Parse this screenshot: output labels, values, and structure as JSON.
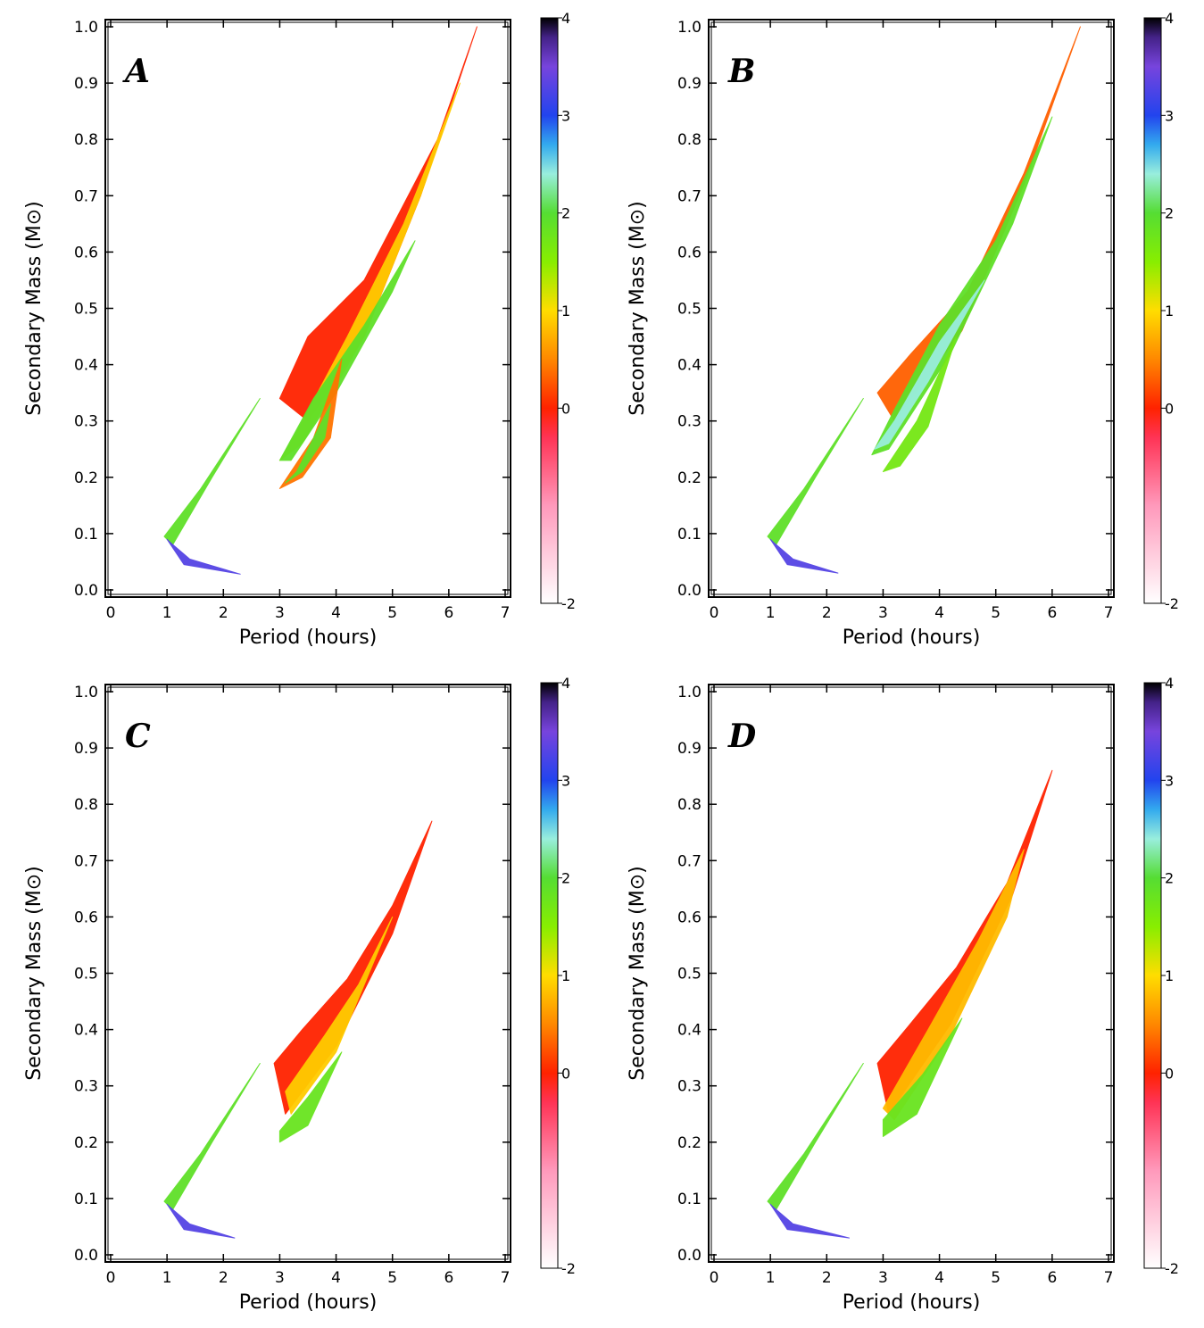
{
  "colorbar": {
    "ticks": [
      "-2",
      "0",
      "1",
      "2",
      "3",
      "4"
    ],
    "tick_values": [
      -2,
      0,
      1,
      2,
      3,
      4
    ],
    "range": [
      -2,
      4
    ],
    "stops": [
      {
        "v": -2.0,
        "c": "#ffffff"
      },
      {
        "v": -1.0,
        "c": "#ff99bb"
      },
      {
        "v": -0.3,
        "c": "#ff3355"
      },
      {
        "v": 0.0,
        "c": "#ff2200"
      },
      {
        "v": 0.5,
        "c": "#ff8800"
      },
      {
        "v": 1.0,
        "c": "#ffdd00"
      },
      {
        "v": 1.5,
        "c": "#88ee00"
      },
      {
        "v": 2.0,
        "c": "#55dd33"
      },
      {
        "v": 2.4,
        "c": "#99eedd"
      },
      {
        "v": 2.7,
        "c": "#33aaee"
      },
      {
        "v": 3.0,
        "c": "#2244ee"
      },
      {
        "v": 3.5,
        "c": "#7744dd"
      },
      {
        "v": 3.8,
        "c": "#442288"
      },
      {
        "v": 4.0,
        "c": "#000000"
      }
    ]
  },
  "chart_data": [
    {
      "type": "heatmap",
      "panel": "A",
      "xlabel": "Period (hours)",
      "ylabel": "Secondary Mass (M⊙)",
      "xlim": [
        0,
        7
      ],
      "ylim": [
        0,
        1.0
      ],
      "x_ticks": [
        "0",
        "1",
        "2",
        "3",
        "4",
        "5",
        "6",
        "7"
      ],
      "y_ticks": [
        "0.0",
        "0.1",
        "0.2",
        "0.3",
        "0.4",
        "0.5",
        "0.6",
        "0.7",
        "0.8",
        "0.9",
        "1.0"
      ],
      "bands": [
        {
          "name": "main-upper-envelope",
          "value": 0.0,
          "points": [
            [
              6.5,
              1.0
            ],
            [
              5.8,
              0.8
            ],
            [
              4.5,
              0.55
            ],
            [
              3.5,
              0.45
            ],
            [
              3.0,
              0.34
            ],
            [
              3.5,
              0.3
            ],
            [
              4.5,
              0.45
            ],
            [
              5.5,
              0.7
            ],
            [
              6.5,
              1.0
            ]
          ]
        },
        {
          "name": "main-inner-band",
          "value": 0.9,
          "points": [
            [
              6.2,
              0.9
            ],
            [
              5.2,
              0.65
            ],
            [
              4.2,
              0.45
            ],
            [
              3.3,
              0.28
            ],
            [
              3.0,
              0.23
            ],
            [
              3.4,
              0.26
            ],
            [
              4.5,
              0.45
            ],
            [
              5.5,
              0.7
            ],
            [
              6.2,
              0.9
            ]
          ]
        },
        {
          "name": "main-core",
          "value": 1.9,
          "points": [
            [
              5.4,
              0.62
            ],
            [
              4.5,
              0.47
            ],
            [
              3.6,
              0.34
            ],
            [
              3.0,
              0.23
            ],
            [
              3.2,
              0.23
            ],
            [
              4.0,
              0.35
            ],
            [
              5.0,
              0.53
            ],
            [
              5.4,
              0.62
            ]
          ]
        },
        {
          "name": "main-lower-arm",
          "value": 0.4,
          "points": [
            [
              4.1,
              0.41
            ],
            [
              3.6,
              0.27
            ],
            [
              3.0,
              0.18
            ],
            [
              3.4,
              0.2
            ],
            [
              3.9,
              0.27
            ],
            [
              4.1,
              0.41
            ]
          ]
        },
        {
          "name": "main-lower-core",
          "value": 1.9,
          "points": [
            [
              3.9,
              0.33
            ],
            [
              3.3,
              0.21
            ],
            [
              3.1,
              0.19
            ],
            [
              3.4,
              0.21
            ],
            [
              3.8,
              0.27
            ],
            [
              3.9,
              0.33
            ]
          ]
        },
        {
          "name": "short-period-upper",
          "value": 1.9,
          "points": [
            [
              2.65,
              0.34
            ],
            [
              1.6,
              0.18
            ],
            [
              0.95,
              0.095
            ],
            [
              1.1,
              0.08
            ],
            [
              1.8,
              0.2
            ],
            [
              2.65,
              0.34
            ]
          ]
        },
        {
          "name": "short-period-tail",
          "value": 3.3,
          "points": [
            [
              1.0,
              0.09
            ],
            [
              1.3,
              0.045
            ],
            [
              2.3,
              0.028
            ],
            [
              1.4,
              0.055
            ],
            [
              1.05,
              0.085
            ],
            [
              1.0,
              0.09
            ]
          ]
        }
      ]
    },
    {
      "type": "heatmap",
      "panel": "B",
      "xlabel": "Period (hours)",
      "ylabel": "Secondary Mass (M⊙)",
      "xlim": [
        0,
        7
      ],
      "ylim": [
        0,
        1.0
      ],
      "x_ticks": [
        "0",
        "1",
        "2",
        "3",
        "4",
        "5",
        "6",
        "7"
      ],
      "y_ticks": [
        "0.0",
        "0.1",
        "0.2",
        "0.3",
        "0.4",
        "0.5",
        "0.6",
        "0.7",
        "0.8",
        "0.9",
        "1.0"
      ],
      "bands": [
        {
          "name": "main-upper-envelope",
          "value": 0.3,
          "points": [
            [
              6.5,
              1.0
            ],
            [
              5.5,
              0.74
            ],
            [
              4.5,
              0.53
            ],
            [
              3.5,
              0.42
            ],
            [
              2.9,
              0.35
            ],
            [
              3.2,
              0.3
            ],
            [
              4.4,
              0.46
            ],
            [
              5.5,
              0.72
            ],
            [
              6.5,
              1.0
            ]
          ]
        },
        {
          "name": "main-inner-band",
          "value": 1.9,
          "points": [
            [
              6.0,
              0.84
            ],
            [
              5.0,
              0.62
            ],
            [
              4.0,
              0.47
            ],
            [
              3.2,
              0.32
            ],
            [
              2.8,
              0.24
            ],
            [
              3.1,
              0.25
            ],
            [
              4.2,
              0.42
            ],
            [
              5.3,
              0.65
            ],
            [
              6.0,
              0.84
            ]
          ]
        },
        {
          "name": "main-core",
          "value": 2.4,
          "points": [
            [
              4.8,
              0.55
            ],
            [
              4.0,
              0.44
            ],
            [
              3.2,
              0.3
            ],
            [
              2.85,
              0.25
            ],
            [
              3.1,
              0.26
            ],
            [
              3.8,
              0.37
            ],
            [
              4.8,
              0.55
            ]
          ]
        },
        {
          "name": "main-lower-arm",
          "value": 1.7,
          "points": [
            [
              4.3,
              0.45
            ],
            [
              3.6,
              0.3
            ],
            [
              3.0,
              0.21
            ],
            [
              3.3,
              0.22
            ],
            [
              3.8,
              0.29
            ],
            [
              4.3,
              0.45
            ]
          ]
        },
        {
          "name": "short-period-upper",
          "value": 1.9,
          "points": [
            [
              2.65,
              0.34
            ],
            [
              1.6,
              0.18
            ],
            [
              0.95,
              0.095
            ],
            [
              1.1,
              0.08
            ],
            [
              1.8,
              0.2
            ],
            [
              2.65,
              0.34
            ]
          ]
        },
        {
          "name": "short-period-tail",
          "value": 3.3,
          "points": [
            [
              1.0,
              0.09
            ],
            [
              1.3,
              0.045
            ],
            [
              2.2,
              0.03
            ],
            [
              1.4,
              0.055
            ],
            [
              1.05,
              0.085
            ],
            [
              1.0,
              0.09
            ]
          ]
        }
      ]
    },
    {
      "type": "heatmap",
      "panel": "C",
      "xlabel": "Period (hours)",
      "ylabel": "Secondary Mass (M⊙)",
      "xlim": [
        0,
        7
      ],
      "ylim": [
        0,
        1.0
      ],
      "x_ticks": [
        "0",
        "1",
        "2",
        "3",
        "4",
        "5",
        "6",
        "7"
      ],
      "y_ticks": [
        "0.0",
        "0.1",
        "0.2",
        "0.3",
        "0.4",
        "0.5",
        "0.6",
        "0.7",
        "0.8",
        "0.9",
        "1.0"
      ],
      "bands": [
        {
          "name": "main-upper-envelope",
          "value": 0.0,
          "points": [
            [
              5.7,
              0.77
            ],
            [
              5.0,
              0.62
            ],
            [
              4.2,
              0.49
            ],
            [
              3.4,
              0.4
            ],
            [
              2.9,
              0.34
            ],
            [
              3.1,
              0.25
            ],
            [
              4.0,
              0.37
            ],
            [
              5.0,
              0.57
            ],
            [
              5.7,
              0.77
            ]
          ]
        },
        {
          "name": "main-inner-band",
          "value": 0.9,
          "points": [
            [
              5.0,
              0.6
            ],
            [
              4.4,
              0.48
            ],
            [
              3.8,
              0.39
            ],
            [
              3.1,
              0.29
            ],
            [
              3.2,
              0.25
            ],
            [
              4.0,
              0.36
            ],
            [
              5.0,
              0.6
            ]
          ]
        },
        {
          "name": "main-core",
          "value": 1.8,
          "points": [
            [
              4.1,
              0.36
            ],
            [
              3.5,
              0.28
            ],
            [
              3.0,
              0.22
            ],
            [
              3.0,
              0.2
            ],
            [
              3.5,
              0.23
            ],
            [
              4.1,
              0.36
            ]
          ]
        },
        {
          "name": "short-period-upper",
          "value": 1.9,
          "points": [
            [
              2.65,
              0.34
            ],
            [
              1.6,
              0.18
            ],
            [
              0.95,
              0.095
            ],
            [
              1.1,
              0.08
            ],
            [
              1.8,
              0.2
            ],
            [
              2.65,
              0.34
            ]
          ]
        },
        {
          "name": "short-period-tail",
          "value": 3.3,
          "points": [
            [
              1.0,
              0.09
            ],
            [
              1.3,
              0.045
            ],
            [
              2.2,
              0.03
            ],
            [
              1.4,
              0.055
            ],
            [
              1.05,
              0.085
            ],
            [
              1.0,
              0.09
            ]
          ]
        }
      ]
    },
    {
      "type": "heatmap",
      "panel": "D",
      "xlabel": "Period (hours)",
      "ylabel": "Secondary Mass (M⊙)",
      "xlim": [
        0,
        7
      ],
      "ylim": [
        0,
        1.0
      ],
      "x_ticks": [
        "0",
        "1",
        "2",
        "3",
        "4",
        "5",
        "6",
        "7"
      ],
      "y_ticks": [
        "0.0",
        "0.1",
        "0.2",
        "0.3",
        "0.4",
        "0.5",
        "0.6",
        "0.7",
        "0.8",
        "0.9",
        "1.0"
      ],
      "bands": [
        {
          "name": "main-upper-envelope",
          "value": 0.0,
          "points": [
            [
              6.0,
              0.86
            ],
            [
              5.2,
              0.66
            ],
            [
              4.3,
              0.51
            ],
            [
              3.4,
              0.4
            ],
            [
              2.9,
              0.34
            ],
            [
              3.1,
              0.25
            ],
            [
              4.2,
              0.41
            ],
            [
              5.3,
              0.64
            ],
            [
              6.0,
              0.86
            ]
          ]
        },
        {
          "name": "main-inner-band",
          "value": 0.8,
          "points": [
            [
              5.5,
              0.72
            ],
            [
              4.7,
              0.56
            ],
            [
              3.8,
              0.4
            ],
            [
              3.0,
              0.26
            ],
            [
              3.2,
              0.24
            ],
            [
              4.2,
              0.39
            ],
            [
              5.2,
              0.6
            ],
            [
              5.5,
              0.72
            ]
          ]
        },
        {
          "name": "main-core",
          "value": 1.8,
          "points": [
            [
              4.4,
              0.42
            ],
            [
              3.7,
              0.32
            ],
            [
              3.0,
              0.24
            ],
            [
              3.0,
              0.21
            ],
            [
              3.6,
              0.25
            ],
            [
              4.4,
              0.42
            ]
          ]
        },
        {
          "name": "short-period-upper",
          "value": 1.9,
          "points": [
            [
              2.65,
              0.34
            ],
            [
              1.6,
              0.18
            ],
            [
              0.95,
              0.095
            ],
            [
              1.1,
              0.08
            ],
            [
              1.8,
              0.2
            ],
            [
              2.65,
              0.34
            ]
          ]
        },
        {
          "name": "short-period-tail",
          "value": 3.3,
          "points": [
            [
              1.0,
              0.09
            ],
            [
              1.3,
              0.045
            ],
            [
              2.4,
              0.03
            ],
            [
              1.4,
              0.055
            ],
            [
              1.05,
              0.085
            ],
            [
              1.0,
              0.09
            ]
          ]
        }
      ]
    }
  ]
}
